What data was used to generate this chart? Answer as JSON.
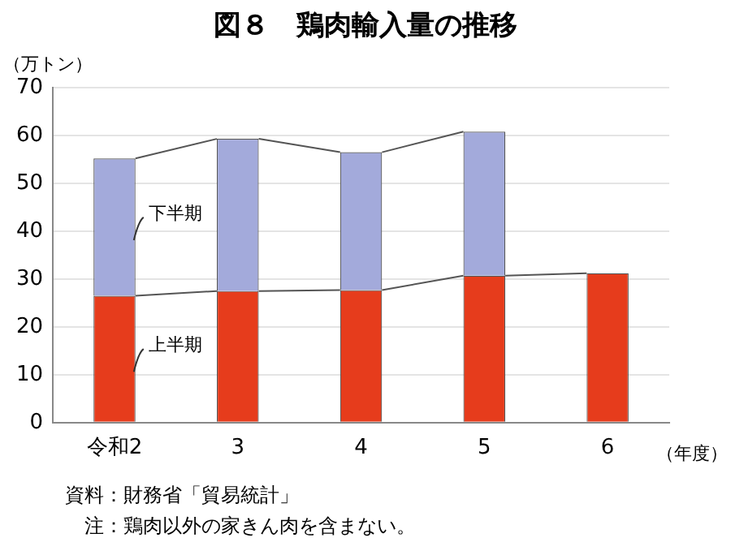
{
  "chart_data": {
    "type": "bar",
    "stacked": true,
    "title": "図８　鶏肉輸入量の推移",
    "ylabel": "（万トン）",
    "xlabel": "（年度）",
    "categories": [
      "令和2",
      "3",
      "4",
      "5",
      "6"
    ],
    "series": [
      {
        "name": "上半期",
        "color": "#e63c1c",
        "values": [
          26.5,
          27.5,
          27.7,
          30.7,
          31.2
        ]
      },
      {
        "name": "下半期",
        "color": "#a3aadb",
        "values": [
          28.7,
          31.8,
          28.8,
          30.1,
          null
        ]
      }
    ],
    "ylim": [
      0,
      70
    ],
    "yticks": [
      0,
      10,
      20,
      30,
      40,
      50,
      60,
      70
    ],
    "grid": "y",
    "legend": false,
    "annotations": [
      "資料：財務省「貿易統計」",
      "　注：鶏肉以外の家きん肉を含まない。"
    ]
  }
}
